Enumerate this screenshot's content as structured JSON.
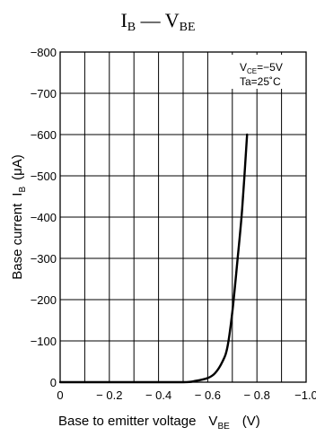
{
  "chart_data": {
    "type": "line",
    "title_main": "I",
    "title_main_sub": "B",
    "title_dash": " — ",
    "title_second": "V",
    "title_second_sub": "BE",
    "xlabel": "Base to emitter voltage",
    "xlabel_symbol": "V",
    "xlabel_symbol_sub": "BE",
    "xlabel_unit": "(V)",
    "ylabel": "Base current",
    "ylabel_symbol": "I",
    "ylabel_symbol_sub": "B",
    "ylabel_unit": "(μA)",
    "conditions": {
      "vce_symbol": "V",
      "vce_sub": "CE",
      "vce_value": "=−5V",
      "ta": "Ta=25˚C"
    },
    "xlim": [
      0,
      -1.0
    ],
    "ylim": [
      0,
      -800
    ],
    "x_ticks": [
      {
        "value": 0,
        "label": "0"
      },
      {
        "value": -0.2,
        "label": "− 0.2"
      },
      {
        "value": -0.4,
        "label": "− 0.4"
      },
      {
        "value": -0.6,
        "label": "− 0.6"
      },
      {
        "value": -0.8,
        "label": "− 0.8"
      },
      {
        "value": -1.0,
        "label": "−1.0"
      }
    ],
    "y_ticks": [
      {
        "value": 0,
        "label": "0"
      },
      {
        "value": -100,
        "label": "−100"
      },
      {
        "value": -200,
        "label": "−200"
      },
      {
        "value": -300,
        "label": "−300"
      },
      {
        "value": -400,
        "label": "−400"
      },
      {
        "value": -500,
        "label": "−500"
      },
      {
        "value": -600,
        "label": "−600"
      },
      {
        "value": -700,
        "label": "−700"
      },
      {
        "value": -800,
        "label": "−800"
      }
    ],
    "x_grid_step": -0.1,
    "y_grid_step": -100,
    "grid": true,
    "series": [
      {
        "color": "#000000",
        "points": [
          [
            0,
            0
          ],
          [
            -0.3,
            0
          ],
          [
            -0.5,
            0
          ],
          [
            -0.55,
            -3
          ],
          [
            -0.6,
            -10
          ],
          [
            -0.63,
            -22
          ],
          [
            -0.66,
            -50
          ],
          [
            -0.68,
            -85
          ],
          [
            -0.7,
            -170
          ],
          [
            -0.72,
            -290
          ],
          [
            -0.74,
            -420
          ],
          [
            -0.76,
            -600
          ]
        ]
      }
    ]
  }
}
